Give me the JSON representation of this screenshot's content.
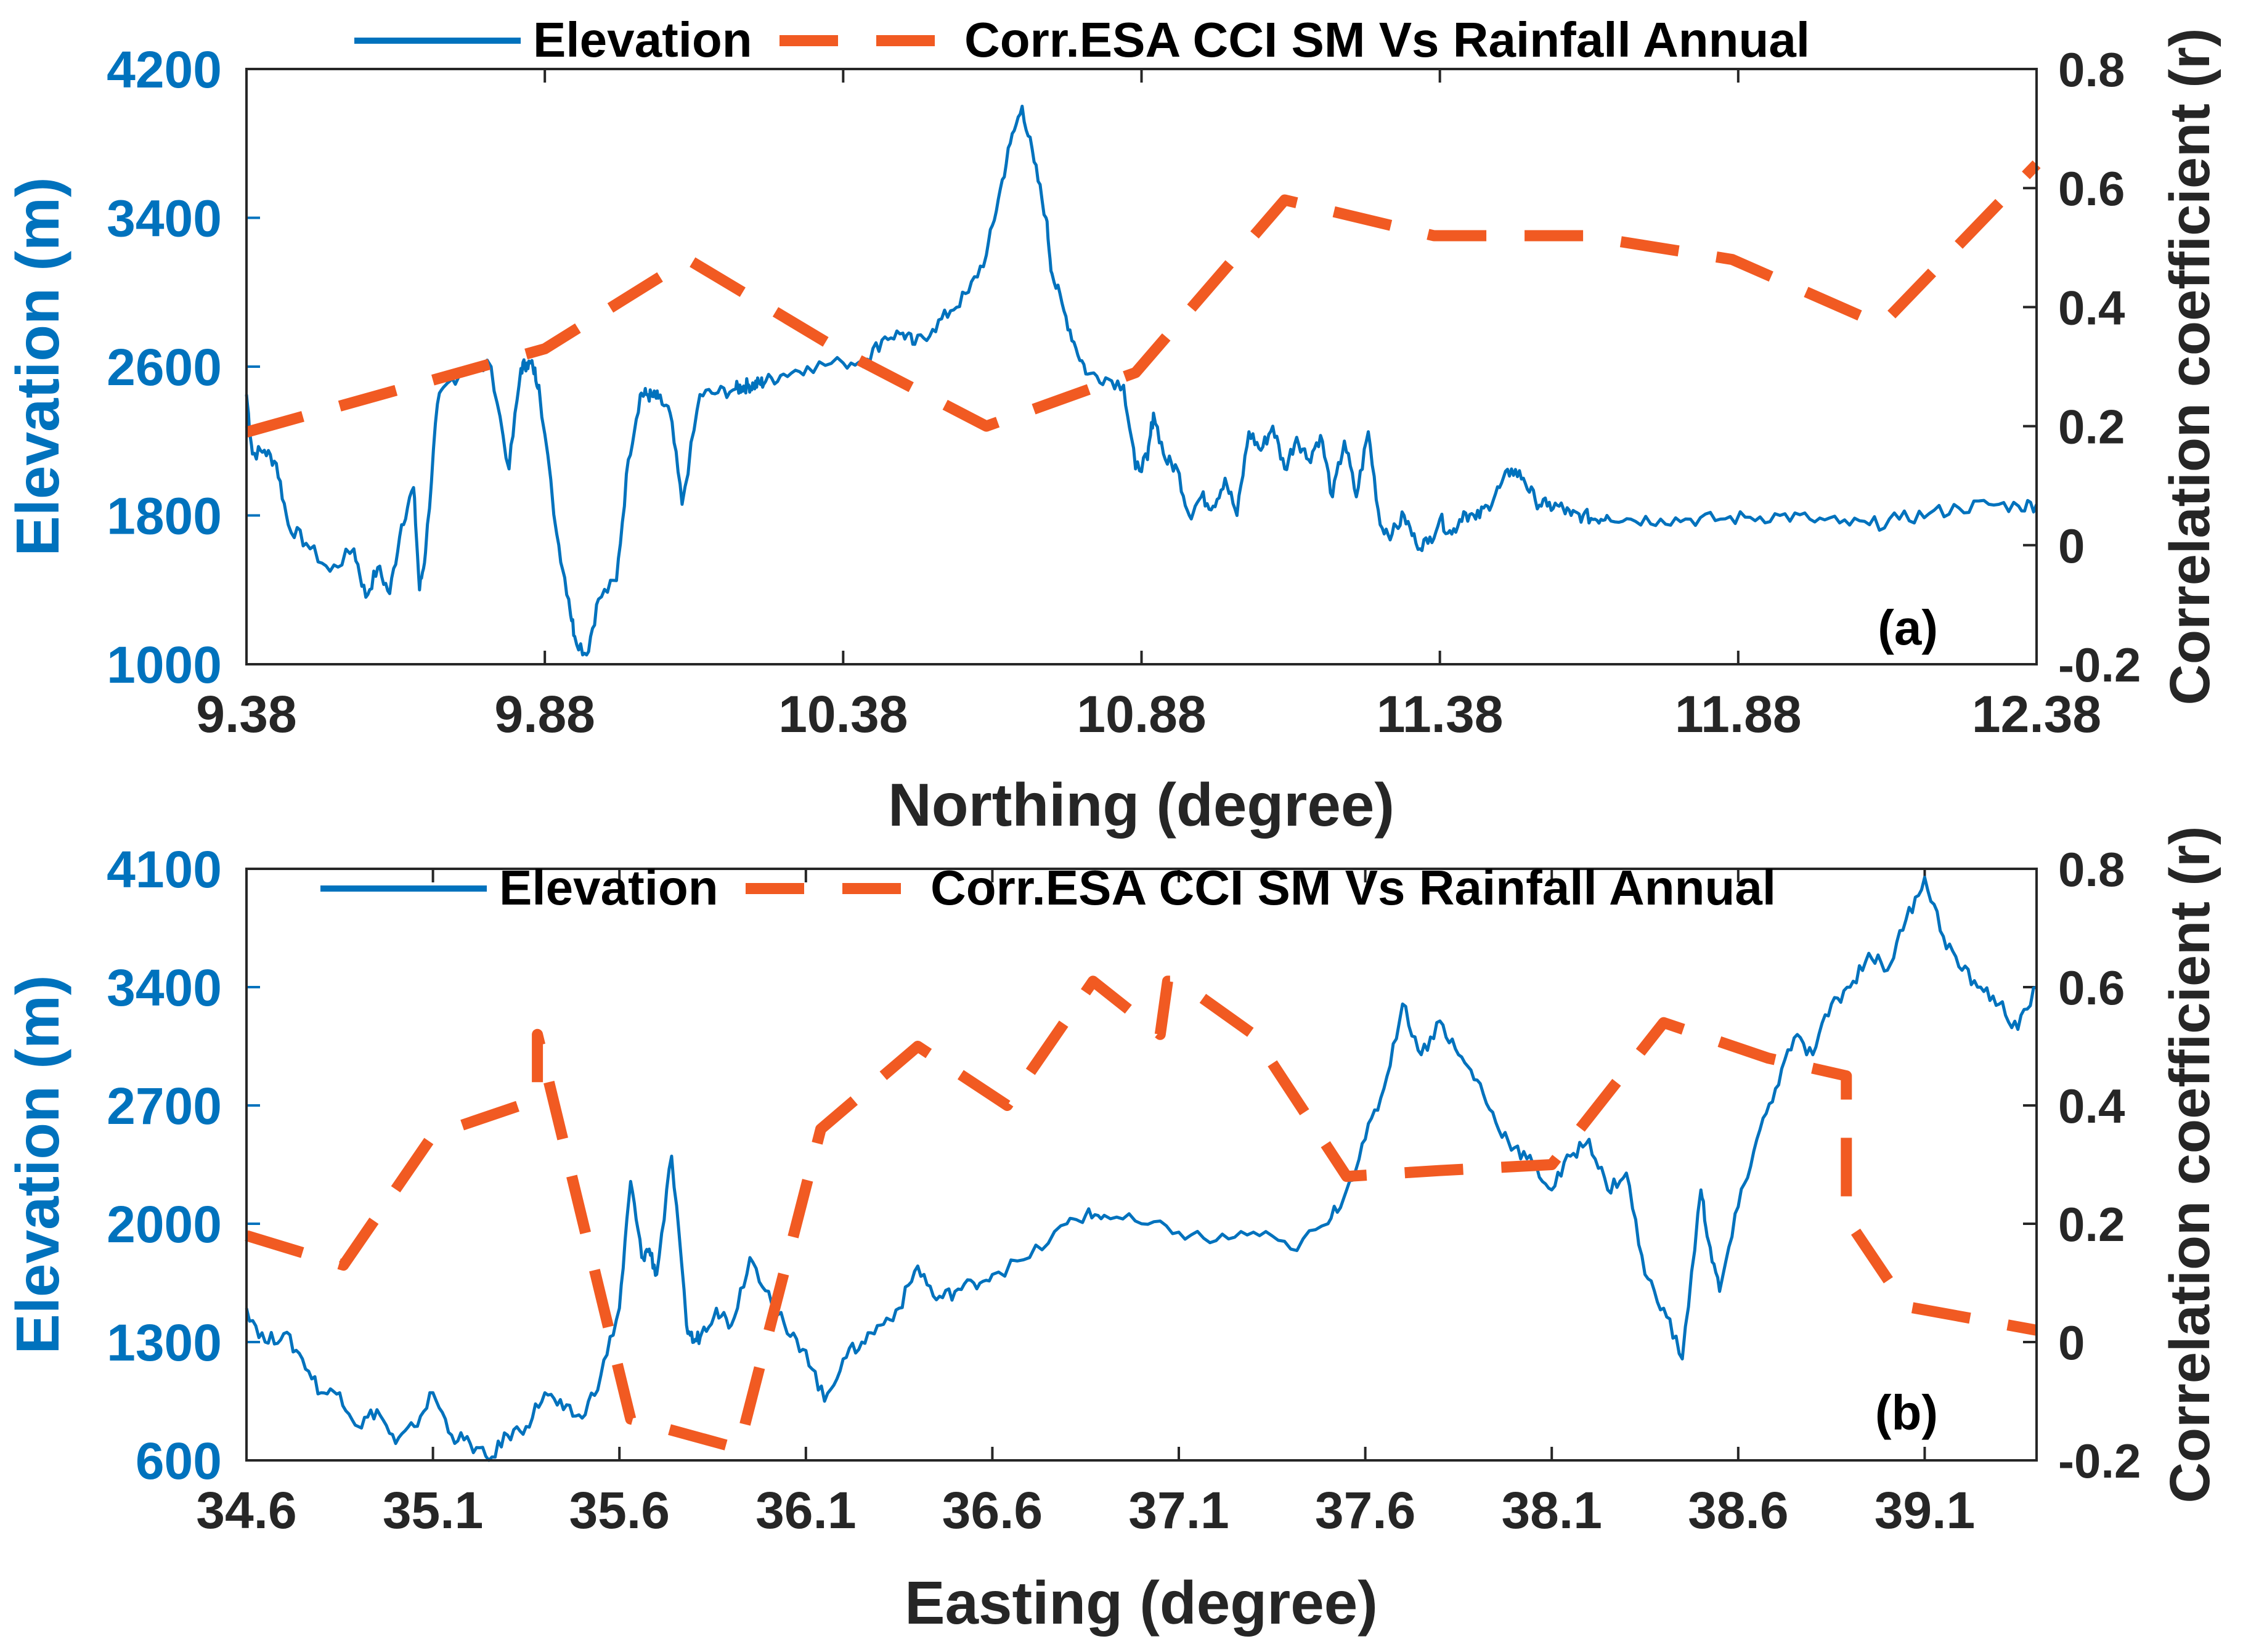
{
  "colors": {
    "elevation": "#0072BD",
    "correlation": "#F15A22",
    "axis": "#262626"
  },
  "chart_data": [
    {
      "type": "line",
      "panel_label": "(a)",
      "xlabel": "Northing (degree)",
      "ylabel": "Elevation (m)",
      "y2label": "Correlation coefficient (r)",
      "xlim": [
        9.38,
        12.38
      ],
      "ylim": [
        1000,
        4200
      ],
      "y2lim": [
        -0.2,
        0.8
      ],
      "xticks": [
        "9.38",
        "9.88",
        "10.38",
        "10.88",
        "11.38",
        "11.88",
        "12.38"
      ],
      "yticks": [
        "1000",
        "1800",
        "2600",
        "3400",
        "4200"
      ],
      "y2ticks": [
        "-0.2",
        "0",
        "0.2",
        "0.4",
        "0.6",
        "0.8"
      ],
      "legend": [
        "Elevation",
        "Corr.ESA CCI SM Vs Rainfall Annual"
      ],
      "legend_position": "top",
      "series": [
        {
          "name": "Elevation",
          "axis": "left",
          "x": [
            9.38,
            9.39,
            9.41,
            9.43,
            9.45,
            9.48,
            9.52,
            9.56,
            9.58,
            9.6,
            9.62,
            9.64,
            9.66,
            9.67,
            9.68,
            9.7,
            9.72,
            9.75,
            9.79,
            9.82,
            9.84,
            9.85,
            9.86,
            9.87,
            9.9,
            9.92,
            9.93,
            9.95,
            9.97,
            10.0,
            10.02,
            10.04,
            10.05,
            10.06,
            10.07,
            10.09,
            10.11,
            10.14,
            10.17,
            10.2,
            10.21,
            10.22,
            10.23,
            10.24,
            10.25,
            10.28,
            10.32,
            10.38,
            10.42,
            10.45,
            10.48,
            10.5,
            10.53,
            10.56,
            10.59,
            10.62,
            10.64,
            10.66,
            10.68,
            10.7,
            10.72,
            10.73,
            10.75,
            10.77,
            10.79,
            10.82,
            10.85,
            10.87,
            10.89,
            10.9,
            10.92,
            10.94,
            10.96,
            10.98,
            11.0,
            11.02,
            11.04,
            11.06,
            11.08,
            11.1,
            11.12,
            11.14,
            11.16,
            11.18,
            11.2,
            11.22,
            11.24,
            11.26,
            11.28,
            11.3,
            11.32,
            11.34,
            11.36,
            11.38,
            11.4,
            11.42,
            11.44,
            11.46,
            11.48,
            11.5,
            11.52,
            11.54,
            11.56,
            11.58,
            11.6,
            11.62,
            11.64,
            11.66,
            11.7,
            11.75,
            11.8,
            11.85,
            11.9,
            11.95,
            12.0,
            12.05,
            12.1,
            12.15,
            12.2,
            12.25,
            12.3,
            12.35,
            12.38
          ],
          "y": [
            2450,
            2130,
            2150,
            2080,
            1750,
            1650,
            1500,
            1620,
            1360,
            1520,
            1380,
            1750,
            1950,
            1400,
            1600,
            2400,
            2520,
            2590,
            2600,
            2050,
            2590,
            2620,
            2600,
            2500,
            1700,
            1350,
            1150,
            1050,
            1350,
            1450,
            2100,
            2450,
            2450,
            2440,
            2430,
            2350,
            1860,
            2450,
            2460,
            2480,
            2490,
            2500,
            2500,
            2510,
            2520,
            2560,
            2600,
            2620,
            2640,
            2760,
            2780,
            2720,
            2800,
            2900,
            3000,
            3200,
            3500,
            3800,
            4000,
            3700,
            3400,
            3100,
            2900,
            2700,
            2560,
            2540,
            2500,
            2050,
            2100,
            2350,
            2100,
            2050,
            1800,
            1900,
            1850,
            2000,
            1800,
            2250,
            2150,
            2280,
            2050,
            2220,
            2100,
            2230,
            1900,
            2200,
            1900,
            2250,
            1750,
            1700,
            1800,
            1650,
            1650,
            1780,
            1700,
            1820,
            1780,
            1850,
            1950,
            2050,
            2000,
            1880,
            1850,
            1850,
            1800,
            1800,
            1780,
            1800,
            1780,
            1780,
            1780,
            1780,
            1790,
            1800,
            1780,
            1760,
            1750,
            1780,
            1810,
            1840,
            1860,
            1850,
            1860
          ]
        },
        {
          "name": "Corr.ESA CCI SM Vs Rainfall Annual",
          "axis": "right",
          "x": [
            9.38,
            9.88,
            10.12,
            10.37,
            10.62,
            10.87,
            11.12,
            11.37,
            11.62,
            11.87,
            12.12,
            12.38
          ],
          "y": [
            0.19,
            0.33,
            0.48,
            0.33,
            0.2,
            0.29,
            0.58,
            0.52,
            0.52,
            0.48,
            0.37,
            0.64
          ]
        }
      ]
    },
    {
      "type": "line",
      "panel_label": "(b)",
      "xlabel": "Easting (degree)",
      "ylabel": "Elevation (m)",
      "y2label": "Correlation coefficient (r)",
      "xlim": [
        34.6,
        39.4
      ],
      "ylim": [
        600,
        4100
      ],
      "y2lim": [
        -0.2,
        0.8
      ],
      "xticks": [
        "34.6",
        "35.1",
        "35.6",
        "36.1",
        "36.6",
        "37.1",
        "37.6",
        "38.1",
        "38.6",
        "39.1"
      ],
      "yticks": [
        "600",
        "1300",
        "2000",
        "2700",
        "3400",
        "4100"
      ],
      "y2ticks": [
        "-0.2",
        "0",
        "0.2",
        "0.4",
        "0.6",
        "0.8"
      ],
      "legend": [
        "Elevation",
        "Corr.ESA CCI SM Vs Rainfall Annual"
      ],
      "legend_position": "top",
      "series": [
        {
          "name": "Elevation",
          "axis": "left",
          "x": [
            34.6,
            34.65,
            34.7,
            34.75,
            34.8,
            34.85,
            34.9,
            34.95,
            35.0,
            35.05,
            35.1,
            35.15,
            35.2,
            35.25,
            35.3,
            35.35,
            35.4,
            35.45,
            35.5,
            35.55,
            35.6,
            35.63,
            35.66,
            35.68,
            35.7,
            35.74,
            35.78,
            35.8,
            35.82,
            35.86,
            35.9,
            35.95,
            36.0,
            36.05,
            36.1,
            36.15,
            36.2,
            36.25,
            36.3,
            36.35,
            36.4,
            36.45,
            36.5,
            36.55,
            36.6,
            36.7,
            36.8,
            36.85,
            36.9,
            37.0,
            37.1,
            37.2,
            37.3,
            37.4,
            37.5,
            37.55,
            37.6,
            37.65,
            37.7,
            37.75,
            37.8,
            37.85,
            37.9,
            37.95,
            38.0,
            38.05,
            38.1,
            38.15,
            38.2,
            38.25,
            38.3,
            38.35,
            38.4,
            38.45,
            38.5,
            38.52,
            38.55,
            38.6,
            38.65,
            38.7,
            38.75,
            38.8,
            38.85,
            38.9,
            38.95,
            39.0,
            39.05,
            39.1,
            39.15,
            39.2,
            39.25,
            39.3,
            39.35,
            39.4
          ],
          "y": [
            1500,
            1300,
            1350,
            1200,
            1000,
            1000,
            800,
            900,
            700,
            800,
            1000,
            750,
            700,
            600,
            750,
            800,
            1000,
            900,
            850,
            1100,
            1500,
            2250,
            1800,
            1850,
            1700,
            2400,
            1400,
            1300,
            1350,
            1500,
            1400,
            1800,
            1600,
            1350,
            1250,
            950,
            1200,
            1300,
            1400,
            1500,
            1750,
            1550,
            1600,
            1650,
            1700,
            1800,
            2000,
            2050,
            2050,
            2000,
            1950,
            1900,
            1950,
            1850,
            2000,
            2200,
            2500,
            2800,
            3300,
            3000,
            3200,
            3000,
            2850,
            2600,
            2450,
            2350,
            2200,
            2400,
            2500,
            2200,
            2300,
            1700,
            1500,
            1200,
            2200,
            1900,
            1600,
            2100,
            2500,
            2800,
            3100,
            3000,
            3300,
            3400,
            3600,
            3500,
            3800,
            4050,
            3700,
            3500,
            3400,
            3300,
            3150,
            3400
          ]
        },
        {
          "name": "Corr.ESA CCI SM Vs Rainfall Annual",
          "axis": "right",
          "x": [
            34.6,
            34.86,
            35.1,
            35.38,
            35.38,
            35.63,
            35.92,
            36.14,
            36.4,
            36.64,
            36.87,
            37.05,
            37.07,
            37.1,
            37.3,
            37.55,
            37.8,
            38.1,
            38.4,
            38.68,
            38.89,
            38.89,
            39.05,
            39.4
          ],
          "y": [
            0.18,
            0.13,
            0.35,
            0.41,
            0.52,
            -0.13,
            -0.18,
            0.36,
            0.5,
            0.4,
            0.61,
            0.52,
            0.61,
            0.61,
            0.52,
            0.28,
            0.29,
            0.3,
            0.54,
            0.48,
            0.45,
            0.21,
            0.06,
            0.02
          ]
        }
      ]
    }
  ]
}
